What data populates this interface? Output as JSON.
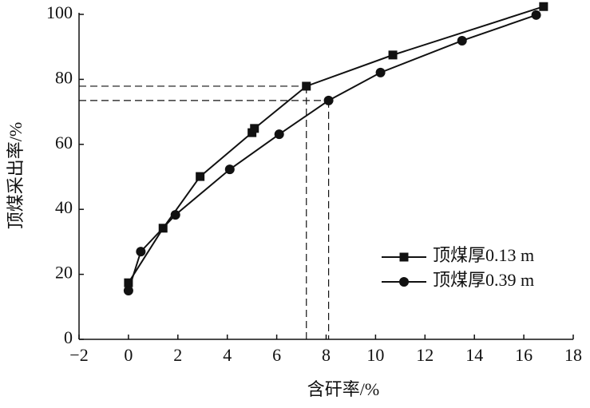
{
  "chart_data": {
    "type": "line",
    "x_label": "含矸率/%",
    "y_label": "顶煤采出率/%",
    "xlim": [
      -2,
      18
    ],
    "ylim": [
      0,
      100
    ],
    "xticks": [
      {
        "value": -2,
        "label": "−2"
      },
      0,
      2,
      4,
      6,
      8,
      10,
      12,
      14,
      16,
      18
    ],
    "yticks": [
      0,
      20,
      40,
      60,
      80,
      100
    ],
    "legend": "right",
    "series": [
      {
        "name": "顶煤厚0.13 m",
        "color": "#111111",
        "marker": "square",
        "x": [
          0,
          1.4,
          2.9,
          5.0,
          5.1,
          7.2,
          10.7,
          16.8
        ],
        "values": [
          17.4,
          34.2,
          50.1,
          63.6,
          64.9,
          77.9,
          87.5,
          102.4
        ]
      },
      {
        "name": "顶煤厚0.39 m",
        "color": "#111111",
        "marker": "circle",
        "x": [
          0,
          0.5,
          1.9,
          4.1,
          6.1,
          8.1,
          10.2,
          13.5,
          16.5
        ],
        "values": [
          15.0,
          27.0,
          38.3,
          52.3,
          63.1,
          73.5,
          82.1,
          91.9,
          99.8
        ]
      }
    ]
  }
}
